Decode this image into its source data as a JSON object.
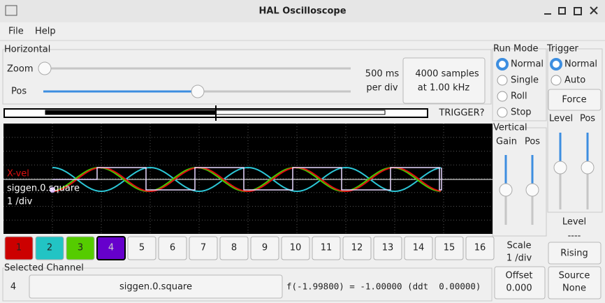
{
  "window": {
    "title": "HAL Oscilloscope"
  },
  "menu": [
    "File",
    "Help"
  ],
  "horizontal": {
    "label": "Horizontal",
    "zoom_label": "Zoom",
    "pos_label": "Pos",
    "rate": [
      "500 ms",
      "per div"
    ],
    "samples_button": [
      "4000 samples",
      "at 1.00 kHz"
    ]
  },
  "trigger_status": "TRIGGER?",
  "scope_overlay": [
    "X-vel",
    "siggen.0.square",
    "1 /div"
  ],
  "channels": [
    "1",
    "2",
    "3",
    "4",
    "5",
    "6",
    "7",
    "8",
    "9",
    "10",
    "11",
    "12",
    "13",
    "14",
    "15",
    "16"
  ],
  "selected_channel": {
    "label": "Selected Channel",
    "number": "4",
    "name": "siggen.0.square",
    "readout": "f(-1.99800) = -1.00000 (ddt  0.00000)"
  },
  "run_mode": {
    "label": "Run Mode",
    "options": [
      "Normal",
      "Single",
      "Roll",
      "Stop"
    ]
  },
  "trigger": {
    "label": "Trigger",
    "options": [
      "Normal",
      "Auto"
    ],
    "force": "Force",
    "level_label": "Level",
    "pos_label": "Pos",
    "level_title": "Level",
    "level_value": "----",
    "edge": "Rising",
    "source_label": "Source",
    "source_value": "None"
  },
  "vertical": {
    "label": "Vertical",
    "gain_label": "Gain",
    "pos_label": "Pos",
    "scale_label": "Scale",
    "scale_value": "1 /div",
    "offset_label": "Offset",
    "offset_value": "0.000"
  }
}
